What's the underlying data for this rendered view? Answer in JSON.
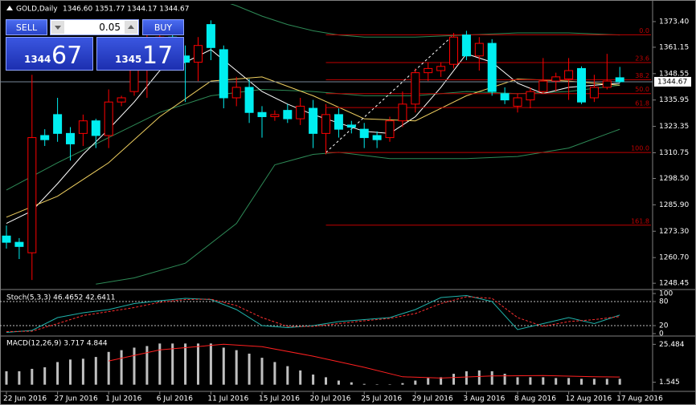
{
  "window": {
    "symbol": "GOLD,Daily",
    "ohlc": "1346.60 1351.77 1344.17 1344.67"
  },
  "trade_panel": {
    "sell": "SELL",
    "buy": "BUY",
    "lot": "0.05",
    "bid_big": "1344",
    "bid_small": "67",
    "ask_big": "1345",
    "ask_small": "17"
  },
  "chart_data": [
    {
      "type": "candlestick",
      "categories": [
        "22 Jun 2016",
        null,
        null,
        null,
        "27 Jun 2016",
        null,
        null,
        null,
        "1 Jul 2016",
        null,
        null,
        null,
        "6 Jul 2016",
        null,
        null,
        null,
        "11 Jul 2016",
        null,
        null,
        null,
        "15 Jul 2016",
        null,
        null,
        null,
        "20 Jul 2016",
        null,
        null,
        null,
        "25 Jul 2016",
        null,
        null,
        null,
        "29 Jul 2016",
        null,
        null,
        null,
        "3 Aug 2016",
        null,
        null,
        null,
        "8 Aug 2016",
        null,
        null,
        null,
        "12 Aug 2016",
        null,
        null,
        null,
        "17 Aug 2016"
      ],
      "open": [
        1271,
        1268,
        1263,
        1319,
        1329,
        1320,
        1320,
        1326,
        1319,
        1335,
        1340,
        1351,
        1362,
        1366,
        1357,
        1354,
        1372,
        1360,
        1337,
        1342,
        1330,
        1328,
        1331,
        1327,
        1332,
        1320,
        1329,
        1324,
        1322,
        1319,
        1318,
        1326,
        1334,
        1349,
        1350,
        1353,
        1367,
        1357,
        1363,
        1339,
        1333,
        1336,
        1340,
        1345,
        1346,
        1351,
        1337,
        1342,
        1346.6
      ],
      "high": [
        1276,
        1270,
        1348,
        1322,
        1337,
        1323,
        1329,
        1327,
        1341,
        1338,
        1365,
        1370,
        1370,
        1368,
        1362,
        1366,
        1374,
        1362,
        1347,
        1346,
        1333,
        1331,
        1334,
        1337,
        1336,
        1334,
        1332,
        1326,
        1325,
        1321,
        1328,
        1340,
        1351,
        1354,
        1354,
        1368,
        1369,
        1366,
        1365,
        1342,
        1339,
        1342,
        1356,
        1349,
        1356,
        1352,
        1348,
        1358,
        1351.77
      ],
      "low": [
        1265,
        1260,
        1250,
        1314,
        1316,
        1307,
        1314,
        1313,
        1313,
        1333,
        1338,
        1337,
        1355,
        1350,
        1335,
        1345,
        1355,
        1332,
        1333,
        1325,
        1318,
        1326,
        1325,
        1324,
        1313,
        1310,
        1318,
        1320,
        1313,
        1313,
        1316,
        1323,
        1330,
        1345,
        1347,
        1351,
        1355,
        1350,
        1338,
        1334,
        1330,
        1332,
        1339,
        1340,
        1336,
        1334,
        1335,
        1341,
        1344.17
      ],
      "close": [
        1268,
        1266,
        1318,
        1317,
        1320,
        1315,
        1326,
        1319,
        1335,
        1337,
        1351,
        1362,
        1366,
        1360,
        1354,
        1362,
        1361,
        1337,
        1342,
        1330,
        1328,
        1329,
        1327,
        1333,
        1320,
        1329,
        1322,
        1323,
        1318,
        1317,
        1326,
        1334,
        1349,
        1351,
        1352,
        1366,
        1357,
        1363,
        1340,
        1336,
        1337,
        1340,
        1345,
        1347,
        1350,
        1335,
        1342,
        1345,
        1344.67
      ],
      "up_color": "#ff0000",
      "down_color": "#00eef0",
      "ylim": [
        1246.6,
        1381.8
      ],
      "yticks": [
        {
          "value": 1373.4,
          "label": "1373.40"
        },
        1361.15,
        1348.55,
        1335.95,
        1323.35,
        1310.75,
        {
          "value": 1298.5,
          "label": "1298.50"
        },
        {
          "value": 1285.9,
          "label": "1285.90"
        },
        {
          "value": 1273.3,
          "label": "1273.30"
        },
        {
          "value": 1260.7,
          "label": "1260.70"
        },
        1248.45
      ],
      "current_price": 1344.67,
      "overlays": [
        {
          "color": "#2e8b57",
          "x": [
            16,
            18,
            20,
            22,
            24,
            26,
            28,
            30,
            32,
            36,
            40,
            44,
            48
          ],
          "values": [
            1385,
            1381,
            1376,
            1372,
            1369,
            1367,
            1366,
            1366,
            1366,
            1367,
            1368,
            1368,
            1367
          ]
        },
        {
          "color": "#2e8b57",
          "x": [
            0,
            4,
            8,
            12,
            16,
            20,
            24,
            28,
            32,
            36,
            40,
            44,
            48
          ],
          "values": [
            1293,
            1306,
            1318,
            1330,
            1338,
            1341,
            1340,
            1338,
            1338,
            1340,
            1339,
            1340,
            1343
          ]
        },
        {
          "color": "#2e8b57",
          "x": [
            7,
            10,
            14,
            18,
            21,
            24,
            26,
            30,
            36,
            40,
            44,
            48
          ],
          "values": [
            1248,
            1251,
            1258,
            1277,
            1305,
            1310,
            1311,
            1308,
            1308,
            1309,
            1313,
            1322
          ]
        },
        {
          "color": "#ffffff",
          "x": [
            0,
            2,
            4,
            6,
            8,
            10,
            12,
            14,
            16,
            18,
            20,
            22,
            24,
            26,
            28,
            30,
            32,
            34,
            36,
            38,
            40,
            42,
            44,
            46,
            48
          ],
          "values": [
            1277,
            1283,
            1296,
            1310,
            1322,
            1335,
            1350,
            1354,
            1360,
            1350,
            1340,
            1334,
            1329,
            1325,
            1321,
            1320,
            1328,
            1342,
            1358,
            1354,
            1344,
            1339,
            1342,
            1343,
            1344
          ]
        },
        {
          "color": "#f0d060",
          "x": [
            0,
            4,
            8,
            12,
            16,
            20,
            24,
            28,
            32,
            36,
            40,
            44,
            48
          ],
          "values": [
            1280,
            1290,
            1306,
            1328,
            1345,
            1347,
            1338,
            1327,
            1326,
            1338,
            1346,
            1345,
            1343
          ]
        }
      ],
      "fib": {
        "color": "#c00000",
        "from": {
          "index": 25,
          "price": 1310.9
        },
        "to": {
          "index": 35,
          "price": 1367.1
        },
        "levels": [
          {
            "value": 0,
            "label": "0.0"
          },
          23.6,
          38.2,
          {
            "value": 50,
            "label": "50.0"
          },
          61.8,
          {
            "value": 100,
            "label": "100.0"
          },
          161.8
        ]
      }
    },
    {
      "type": "line",
      "title": "Stoch(5,3,3) 46.4652 42.6411",
      "ylim": [
        0,
        100
      ],
      "yticks": [
        0,
        20,
        80,
        100
      ],
      "levels": [
        20,
        80
      ],
      "series": [
        {
          "color": "#20b2aa",
          "dash": false,
          "x": [
            0,
            2,
            4,
            6,
            8,
            10,
            12,
            14,
            16,
            18,
            20,
            22,
            24,
            26,
            28,
            30,
            32,
            34,
            36,
            38,
            40,
            42,
            44,
            46,
            48
          ],
          "values": [
            3,
            8,
            40,
            52,
            60,
            75,
            82,
            88,
            85,
            60,
            20,
            15,
            20,
            30,
            35,
            40,
            60,
            90,
            95,
            80,
            10,
            25,
            40,
            25,
            46.4652
          ]
        },
        {
          "color": "#ff3030",
          "dash": true,
          "x": [
            0,
            2,
            4,
            6,
            8,
            10,
            12,
            14,
            16,
            18,
            20,
            22,
            24,
            26,
            28,
            30,
            32,
            34,
            36,
            38,
            40,
            42,
            44,
            46,
            48
          ],
          "values": [
            5,
            6,
            25,
            45,
            55,
            65,
            78,
            85,
            86,
            70,
            40,
            18,
            18,
            25,
            32,
            38,
            50,
            75,
            92,
            88,
            40,
            18,
            30,
            35,
            42.6411
          ]
        }
      ]
    },
    {
      "type": "bar",
      "title": "MACD(12,26,9) 3.717 4.844",
      "color": "#c0c0c0",
      "ylim": [
        -3.2,
        28.7
      ],
      "yticks": [
        25.484,
        1.545
      ],
      "values": [
        8.5,
        8.5,
        10,
        11,
        14.3,
        15.9,
        16.4,
        17.5,
        20.7,
        21.8,
        23.4,
        24.4,
        26,
        26,
        26,
        26,
        26,
        23.4,
        21.8,
        19.6,
        17,
        14.3,
        11.7,
        9,
        6.4,
        4.7,
        2.6,
        1.5,
        0.5,
        0.1,
        0.2,
        1,
        2.6,
        4.2,
        4.7,
        6.9,
        8.5,
        9,
        8.5,
        6.9,
        4.7,
        4.7,
        4.7,
        4.2,
        4.2,
        3.7,
        3.7,
        3.7,
        3.717
      ],
      "series": [
        {
          "color": "#ff2020",
          "dash": false,
          "x": [
            8,
            12,
            17,
            20,
            24,
            28,
            31,
            34,
            38,
            42,
            46,
            48
          ],
          "values": [
            15,
            22,
            25.5,
            24,
            18,
            11,
            5,
            4.2,
            5.5,
            5.8,
            5,
            4.844
          ]
        }
      ]
    }
  ]
}
